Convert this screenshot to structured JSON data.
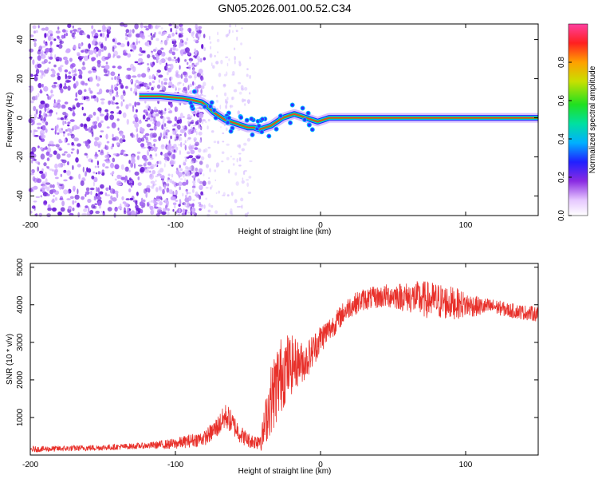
{
  "figure_title": "GN05.2026.001.00.52.C34",
  "chart_data": [
    {
      "type": "heatmap",
      "xlabel": "Height of straight line (km)",
      "ylabel": "Frequency (Hz)",
      "xlim": [
        -200,
        150
      ],
      "ylim": [
        -50,
        48
      ],
      "xticks": [
        -200,
        -100,
        0,
        100
      ],
      "yticks": [
        -40,
        -20,
        0,
        20,
        40
      ],
      "colorbar": {
        "label": "Normalized spectral amplitude",
        "range": [
          0,
          1
        ],
        "ticks": [
          0,
          0.2,
          0.4,
          0.6,
          0.8
        ]
      },
      "ridge": {
        "x": [
          -125,
          -110,
          -95,
          -88,
          -82,
          -78,
          -74,
          -70,
          -66,
          -62,
          -58,
          -54,
          -50,
          -46,
          -42,
          -38,
          -34,
          -30,
          -26,
          -22,
          -18,
          -14,
          -10,
          -6,
          -2,
          2,
          6,
          10,
          20,
          40,
          60,
          80,
          100,
          120,
          150
        ],
        "y": [
          11,
          11,
          10,
          9,
          8,
          6,
          3,
          1,
          -1,
          -2,
          -3,
          -4,
          -5,
          -5,
          -6,
          -5,
          -4,
          -2,
          0,
          1,
          2,
          1,
          0,
          -1,
          -2,
          -1,
          0,
          0,
          0,
          0,
          0,
          0,
          0,
          0,
          0
        ]
      }
    },
    {
      "type": "line",
      "xlabel": "Height of straight line (km)",
      "ylabel": "SNR (10 * v/v)",
      "xlim": [
        -200,
        150
      ],
      "ylim": [
        0,
        5100
      ],
      "xticks": [
        -200,
        -100,
        0,
        100
      ],
      "yticks": [
        1000,
        2000,
        3000,
        4000,
        5000
      ],
      "color": "#e8302a",
      "series": [
        {
          "name": "SNR envelope",
          "x": [
            -200,
            -150,
            -120,
            -100,
            -90,
            -80,
            -75,
            -70,
            -65,
            -60,
            -55,
            -50,
            -45,
            -40,
            -35,
            -30,
            -25,
            -20,
            -15,
            -10,
            -5,
            0,
            5,
            10,
            15,
            20,
            25,
            30,
            40,
            50,
            60,
            70,
            80,
            90,
            100,
            110,
            120,
            130,
            140,
            150
          ],
          "y": [
            150,
            200,
            250,
            300,
            380,
            450,
            600,
            800,
            1050,
            800,
            550,
            400,
            350,
            500,
            1400,
            1900,
            2300,
            2400,
            2450,
            2500,
            2800,
            3100,
            3300,
            3500,
            3750,
            3950,
            4050,
            4150,
            4200,
            4250,
            4200,
            4150,
            4100,
            4050,
            4000,
            3950,
            3950,
            3850,
            3800,
            3750
          ],
          "noise_amplitude": [
            80,
            80,
            80,
            150,
            180,
            200,
            250,
            300,
            350,
            300,
            250,
            200,
            200,
            400,
            900,
            1100,
            1000,
            800,
            600,
            500,
            450,
            400,
            350,
            300,
            300,
            300,
            300,
            300,
            300,
            350,
            400,
            500,
            500,
            450,
            350,
            250,
            200,
            200,
            200,
            200
          ]
        }
      ]
    }
  ]
}
